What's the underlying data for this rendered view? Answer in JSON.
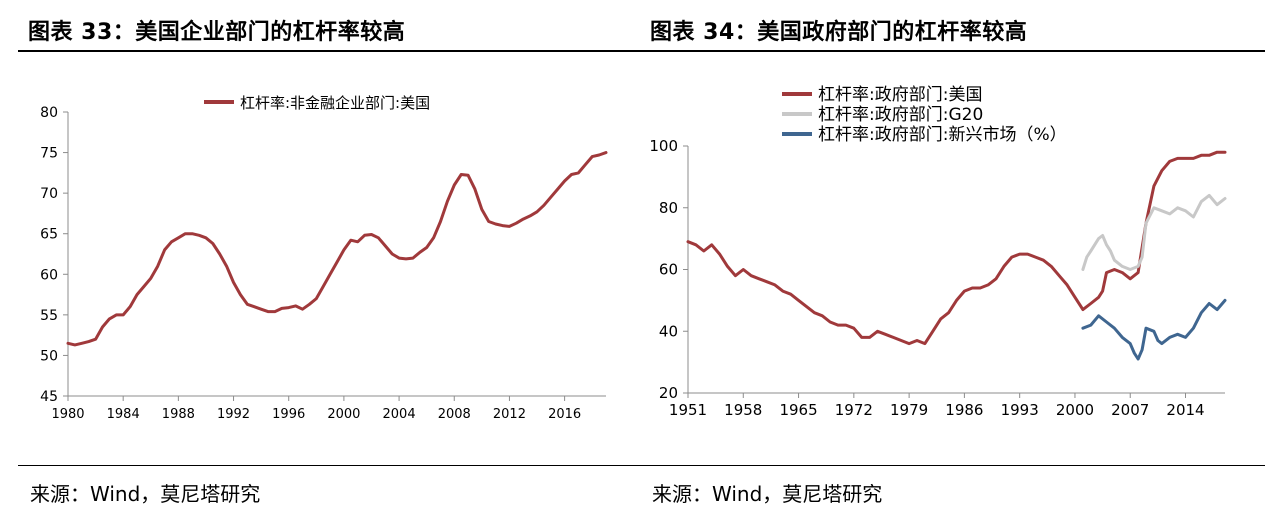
{
  "figures": [
    {
      "title": "图表 33：美国企业部门的杠杆率较高",
      "source": "来源：Wind，莫尼塔研究"
    },
    {
      "title": "图表 34：美国政府部门的杠杆率较高",
      "source": "来源：Wind，莫尼塔研究"
    }
  ],
  "chart_data": [
    {
      "type": "line",
      "title": "",
      "xlabel": "",
      "ylabel": "",
      "xlim": [
        1980,
        2019
      ],
      "ylim": [
        45,
        80
      ],
      "x_ticks": [
        1980,
        1984,
        1988,
        1992,
        1996,
        2000,
        2004,
        2008,
        2012,
        2016
      ],
      "y_ticks": [
        45,
        50,
        55,
        60,
        65,
        70,
        75,
        80
      ],
      "grid": false,
      "legend_position": "top",
      "series": [
        {
          "name": "杠杆率:非金融企业部门:美国",
          "color": "#a0393b",
          "points": [
            [
              1980.0,
              51.5
            ],
            [
              1980.5,
              51.3
            ],
            [
              1981.0,
              51.5
            ],
            [
              1981.5,
              51.7
            ],
            [
              1982.0,
              52.0
            ],
            [
              1982.5,
              53.5
            ],
            [
              1983.0,
              54.5
            ],
            [
              1983.5,
              55.0
            ],
            [
              1984.0,
              55.0
            ],
            [
              1984.5,
              56.0
            ],
            [
              1985.0,
              57.5
            ],
            [
              1985.5,
              58.5
            ],
            [
              1986.0,
              59.5
            ],
            [
              1986.5,
              61.0
            ],
            [
              1987.0,
              63.0
            ],
            [
              1987.5,
              64.0
            ],
            [
              1988.0,
              64.5
            ],
            [
              1988.5,
              65.0
            ],
            [
              1989.0,
              65.0
            ],
            [
              1989.5,
              64.8
            ],
            [
              1990.0,
              64.5
            ],
            [
              1990.5,
              63.8
            ],
            [
              1991.0,
              62.5
            ],
            [
              1991.5,
              61.0
            ],
            [
              1992.0,
              59.0
            ],
            [
              1992.5,
              57.5
            ],
            [
              1993.0,
              56.3
            ],
            [
              1993.5,
              56.0
            ],
            [
              1994.0,
              55.7
            ],
            [
              1994.5,
              55.4
            ],
            [
              1995.0,
              55.4
            ],
            [
              1995.5,
              55.8
            ],
            [
              1996.0,
              55.9
            ],
            [
              1996.5,
              56.1
            ],
            [
              1997.0,
              55.7
            ],
            [
              1997.5,
              56.3
            ],
            [
              1998.0,
              57.0
            ],
            [
              1998.5,
              58.5
            ],
            [
              1999.0,
              60.0
            ],
            [
              1999.5,
              61.5
            ],
            [
              2000.0,
              63.0
            ],
            [
              2000.5,
              64.2
            ],
            [
              2001.0,
              64.0
            ],
            [
              2001.5,
              64.8
            ],
            [
              2002.0,
              64.9
            ],
            [
              2002.5,
              64.5
            ],
            [
              2003.0,
              63.5
            ],
            [
              2003.5,
              62.5
            ],
            [
              2004.0,
              62.0
            ],
            [
              2004.5,
              61.9
            ],
            [
              2005.0,
              62.0
            ],
            [
              2005.5,
              62.7
            ],
            [
              2006.0,
              63.3
            ],
            [
              2006.5,
              64.5
            ],
            [
              2007.0,
              66.5
            ],
            [
              2007.5,
              69.0
            ],
            [
              2008.0,
              71.0
            ],
            [
              2008.5,
              72.3
            ],
            [
              2009.0,
              72.2
            ],
            [
              2009.5,
              70.5
            ],
            [
              2010.0,
              68.0
            ],
            [
              2010.5,
              66.5
            ],
            [
              2011.0,
              66.2
            ],
            [
              2011.5,
              66.0
            ],
            [
              2012.0,
              65.9
            ],
            [
              2012.5,
              66.3
            ],
            [
              2013.0,
              66.8
            ],
            [
              2013.5,
              67.2
            ],
            [
              2014.0,
              67.7
            ],
            [
              2014.5,
              68.5
            ],
            [
              2015.0,
              69.5
            ],
            [
              2015.5,
              70.5
            ],
            [
              2016.0,
              71.5
            ],
            [
              2016.5,
              72.3
            ],
            [
              2017.0,
              72.5
            ],
            [
              2017.5,
              73.5
            ],
            [
              2018.0,
              74.5
            ],
            [
              2018.5,
              74.7
            ],
            [
              2019.0,
              75.0
            ]
          ]
        }
      ]
    },
    {
      "type": "line",
      "title": "",
      "xlabel": "",
      "ylabel": "",
      "xlim": [
        1951,
        2019
      ],
      "ylim": [
        20,
        100
      ],
      "x_ticks": [
        1951,
        1958,
        1965,
        1972,
        1979,
        1986,
        1993,
        2000,
        2007,
        2014
      ],
      "y_ticks": [
        20,
        40,
        60,
        80,
        100
      ],
      "grid": false,
      "legend_position": "top-left",
      "series": [
        {
          "name": "杠杆率:政府部门:美国",
          "color": "#a0393b",
          "points": [
            [
              1951,
              69
            ],
            [
              1952,
              68
            ],
            [
              1953,
              66
            ],
            [
              1954,
              68
            ],
            [
              1955,
              65
            ],
            [
              1956,
              61
            ],
            [
              1957,
              58
            ],
            [
              1958,
              60
            ],
            [
              1959,
              58
            ],
            [
              1960,
              57
            ],
            [
              1961,
              56
            ],
            [
              1962,
              55
            ],
            [
              1963,
              53
            ],
            [
              1964,
              52
            ],
            [
              1965,
              50
            ],
            [
              1966,
              48
            ],
            [
              1967,
              46
            ],
            [
              1968,
              45
            ],
            [
              1969,
              43
            ],
            [
              1970,
              42
            ],
            [
              1971,
              42
            ],
            [
              1972,
              41
            ],
            [
              1973,
              38
            ],
            [
              1974,
              38
            ],
            [
              1975,
              40
            ],
            [
              1976,
              39
            ],
            [
              1977,
              38
            ],
            [
              1978,
              37
            ],
            [
              1979,
              36
            ],
            [
              1980,
              37
            ],
            [
              1981,
              36
            ],
            [
              1982,
              40
            ],
            [
              1983,
              44
            ],
            [
              1984,
              46
            ],
            [
              1985,
              50
            ],
            [
              1986,
              53
            ],
            [
              1987,
              54
            ],
            [
              1988,
              54
            ],
            [
              1989,
              55
            ],
            [
              1990,
              57
            ],
            [
              1991,
              61
            ],
            [
              1992,
              64
            ],
            [
              1993,
              65
            ],
            [
              1994,
              65
            ],
            [
              1995,
              64
            ],
            [
              1996,
              63
            ],
            [
              1997,
              61
            ],
            [
              1998,
              58
            ],
            [
              1999,
              55
            ],
            [
              2000,
              51
            ],
            [
              2001,
              47
            ],
            [
              2002,
              49
            ],
            [
              2003,
              51
            ],
            [
              2003.5,
              53
            ],
            [
              2004,
              59
            ],
            [
              2005,
              60
            ],
            [
              2006,
              59
            ],
            [
              2007,
              57
            ],
            [
              2008,
              59
            ],
            [
              2009,
              75
            ],
            [
              2010,
              87
            ],
            [
              2011,
              92
            ],
            [
              2012,
              95
            ],
            [
              2013,
              96
            ],
            [
              2014,
              96
            ],
            [
              2015,
              96
            ],
            [
              2016,
              97
            ],
            [
              2017,
              97
            ],
            [
              2018,
              98
            ],
            [
              2019,
              98
            ]
          ]
        },
        {
          "name": "杠杆率:政府部门:G20",
          "color": "#c8c8c8",
          "points": [
            [
              2001,
              60
            ],
            [
              2001.5,
              64
            ],
            [
              2002,
              66
            ],
            [
              2003,
              70
            ],
            [
              2003.5,
              71
            ],
            [
              2004,
              68
            ],
            [
              2004.5,
              66
            ],
            [
              2005,
              63
            ],
            [
              2006,
              61
            ],
            [
              2007,
              60
            ],
            [
              2008,
              61
            ],
            [
              2008.5,
              64
            ],
            [
              2009,
              75
            ],
            [
              2010,
              80
            ],
            [
              2011,
              79
            ],
            [
              2012,
              78
            ],
            [
              2013,
              80
            ],
            [
              2014,
              79
            ],
            [
              2015,
              77
            ],
            [
              2016,
              82
            ],
            [
              2017,
              84
            ],
            [
              2018,
              81
            ],
            [
              2019,
              83
            ]
          ]
        },
        {
          "name": "杠杆率:政府部门:新兴市场（%）",
          "color": "#3f6690",
          "points": [
            [
              2001,
              41
            ],
            [
              2002,
              42
            ],
            [
              2003,
              45
            ],
            [
              2004,
              43
            ],
            [
              2005,
              41
            ],
            [
              2006,
              38
            ],
            [
              2007,
              36
            ],
            [
              2007.5,
              33
            ],
            [
              2008,
              31
            ],
            [
              2008.5,
              34
            ],
            [
              2009,
              41
            ],
            [
              2010,
              40
            ],
            [
              2010.5,
              37
            ],
            [
              2011,
              36
            ],
            [
              2012,
              38
            ],
            [
              2013,
              39
            ],
            [
              2014,
              38
            ],
            [
              2015,
              41
            ],
            [
              2016,
              46
            ],
            [
              2017,
              49
            ],
            [
              2018,
              47
            ],
            [
              2019,
              50
            ]
          ]
        }
      ]
    }
  ]
}
